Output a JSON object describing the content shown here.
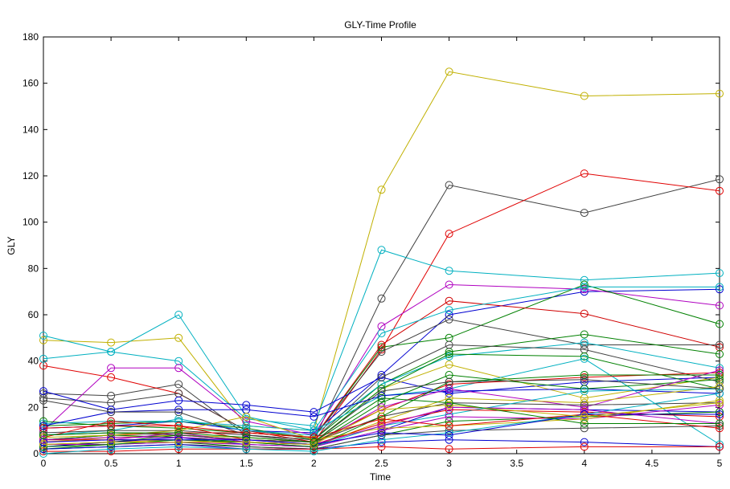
{
  "chart_data": {
    "type": "line",
    "title": "GLY-Time Profile",
    "xlabel": "Time",
    "ylabel": "GLY",
    "xlim": [
      0,
      5
    ],
    "ylim": [
      0,
      180
    ],
    "xticks": [
      0,
      0.5,
      1,
      1.5,
      2,
      2.5,
      3,
      3.5,
      4,
      4.5,
      5
    ],
    "xtick_labels": [
      "0",
      "0.5",
      "1",
      "1.5",
      "2",
      "2.5",
      "3",
      "3.5",
      "4",
      "4.5",
      "5"
    ],
    "yticks": [
      0,
      20,
      40,
      60,
      80,
      100,
      120,
      140,
      160,
      180
    ],
    "ytick_labels": [
      "0",
      "20",
      "40",
      "60",
      "80",
      "100",
      "120",
      "140",
      "160",
      "180"
    ],
    "grid": false,
    "legend": false,
    "marker": "circle",
    "x": [
      0,
      0.5,
      1,
      1.5,
      2,
      2.5,
      3,
      4,
      5
    ],
    "series": [
      {
        "color": "#C0B000",
        "values": [
          49,
          48,
          50,
          12,
          10,
          114,
          165,
          154.5,
          155.5
        ]
      },
      {
        "color": "#404040",
        "values": [
          26,
          25,
          30,
          8,
          6,
          67,
          116,
          104,
          118.5
        ]
      },
      {
        "color": "#E00000",
        "values": [
          38,
          33,
          26,
          10,
          5,
          45,
          95,
          121,
          113.5
        ]
      },
      {
        "color": "#00B0C0",
        "values": [
          51,
          44,
          40,
          15,
          12,
          88,
          79,
          75,
          78
        ]
      },
      {
        "color": "#0000D0",
        "values": [
          11,
          12,
          14,
          10,
          9,
          34,
          60,
          70,
          71
        ]
      },
      {
        "color": "#B000C0",
        "values": [
          10,
          37,
          37,
          14,
          8,
          55,
          73,
          71,
          64
        ]
      },
      {
        "color": "#008000",
        "values": [
          14,
          12,
          11,
          9,
          7,
          46,
          50,
          73,
          56
        ]
      },
      {
        "color": "#D00000",
        "values": [
          6,
          8,
          9,
          9,
          7,
          47,
          66,
          60.5,
          46
        ]
      },
      {
        "color": "#00B0C0",
        "values": [
          41,
          44,
          60,
          16,
          10,
          52,
          62,
          72,
          72
        ]
      },
      {
        "color": "#404040",
        "values": [
          24,
          22,
          26,
          10,
          7,
          44,
          58,
          47,
          47
        ]
      },
      {
        "color": "#008000",
        "values": [
          12,
          13,
          14,
          11,
          6,
          30,
          44,
          51.5,
          43
        ]
      },
      {
        "color": "#00B0C0",
        "values": [
          8,
          10,
          15,
          10,
          8,
          30,
          42,
          48,
          37
        ]
      },
      {
        "color": "#0000D0",
        "values": [
          27,
          19,
          23,
          21,
          18,
          33,
          26,
          31,
          33
        ]
      },
      {
        "color": "#C0B000",
        "values": [
          5,
          7,
          8,
          7,
          5,
          28,
          38.5,
          24,
          33
        ]
      },
      {
        "color": "#404040",
        "values": [
          9,
          10,
          10,
          8,
          6,
          33,
          47,
          45,
          31
        ]
      },
      {
        "color": "#008000",
        "values": [
          4,
          5,
          8,
          6,
          5,
          28,
          43,
          42,
          28
        ]
      },
      {
        "color": "#00B0C0",
        "values": [
          13,
          14,
          14,
          12,
          10,
          25,
          28,
          41,
          4
        ]
      },
      {
        "color": "#E00000",
        "values": [
          7,
          14,
          12,
          6,
          5,
          19,
          30,
          33,
          35
        ]
      },
      {
        "color": "#0000D0",
        "values": [
          12,
          18,
          19,
          19,
          16,
          25,
          27,
          28,
          26
        ]
      },
      {
        "color": "#008000",
        "values": [
          6,
          8,
          7,
          5,
          4,
          22,
          34,
          28,
          32
        ]
      },
      {
        "color": "#B000C0",
        "values": [
          5,
          6,
          9,
          5,
          4,
          20,
          28,
          20,
          36
        ]
      },
      {
        "color": "#C0B000",
        "values": [
          3,
          5,
          6,
          4,
          3,
          14,
          24,
          22,
          29
        ]
      },
      {
        "color": "#404040",
        "values": [
          8,
          9,
          8,
          6,
          5,
          16,
          22,
          21,
          22
        ]
      },
      {
        "color": "#00B0C0",
        "values": [
          4,
          4,
          6,
          5,
          3,
          12,
          17,
          27,
          28
        ]
      },
      {
        "color": "#0000D0",
        "values": [
          3,
          5,
          7,
          4,
          3,
          10,
          20,
          19,
          18
        ]
      },
      {
        "color": "#E00000",
        "values": [
          6,
          6,
          6,
          5,
          4,
          13,
          19,
          18,
          16
        ]
      },
      {
        "color": "#008000",
        "values": [
          2,
          4,
          5,
          3,
          2,
          8,
          14,
          16,
          18
        ]
      },
      {
        "color": "#B000C0",
        "values": [
          4,
          4,
          5,
          4,
          3,
          10,
          16,
          15,
          21
        ]
      },
      {
        "color": "#C0B000",
        "values": [
          7,
          8,
          10,
          16,
          6,
          11,
          12,
          15,
          23
        ]
      },
      {
        "color": "#404040",
        "values": [
          2,
          3,
          4,
          3,
          2,
          8,
          10,
          11,
          12
        ]
      },
      {
        "color": "#0000D0",
        "values": [
          2,
          3,
          4,
          2,
          2,
          5,
          6,
          5,
          3
        ]
      },
      {
        "color": "#E00000",
        "values": [
          1,
          1,
          2,
          2,
          2,
          3,
          2,
          3,
          3
        ]
      },
      {
        "color": "#00B0C0",
        "values": [
          0,
          2,
          3,
          2,
          1,
          6,
          9,
          17,
          26
        ]
      },
      {
        "color": "#008000",
        "values": [
          3,
          4,
          6,
          5,
          3,
          16,
          31,
          34,
          34
        ]
      },
      {
        "color": "#B000C0",
        "values": [
          6,
          7,
          7,
          6,
          4,
          12,
          20,
          19,
          13
        ]
      },
      {
        "color": "#E00000",
        "values": [
          11,
          12,
          12,
          9,
          7,
          15,
          12,
          17,
          11
        ]
      },
      {
        "color": "#0000D0",
        "values": [
          5,
          6,
          6,
          6,
          4,
          9,
          8,
          17,
          17
        ]
      },
      {
        "color": "#404040",
        "values": [
          23,
          18,
          18,
          8,
          5,
          27,
          31,
          32,
          28
        ]
      },
      {
        "color": "#C0B000",
        "values": [
          4,
          5,
          5,
          5,
          4,
          19,
          21,
          16,
          22
        ]
      },
      {
        "color": "#008000",
        "values": [
          8,
          9,
          9,
          7,
          5,
          24,
          22,
          13,
          13
        ]
      }
    ]
  }
}
